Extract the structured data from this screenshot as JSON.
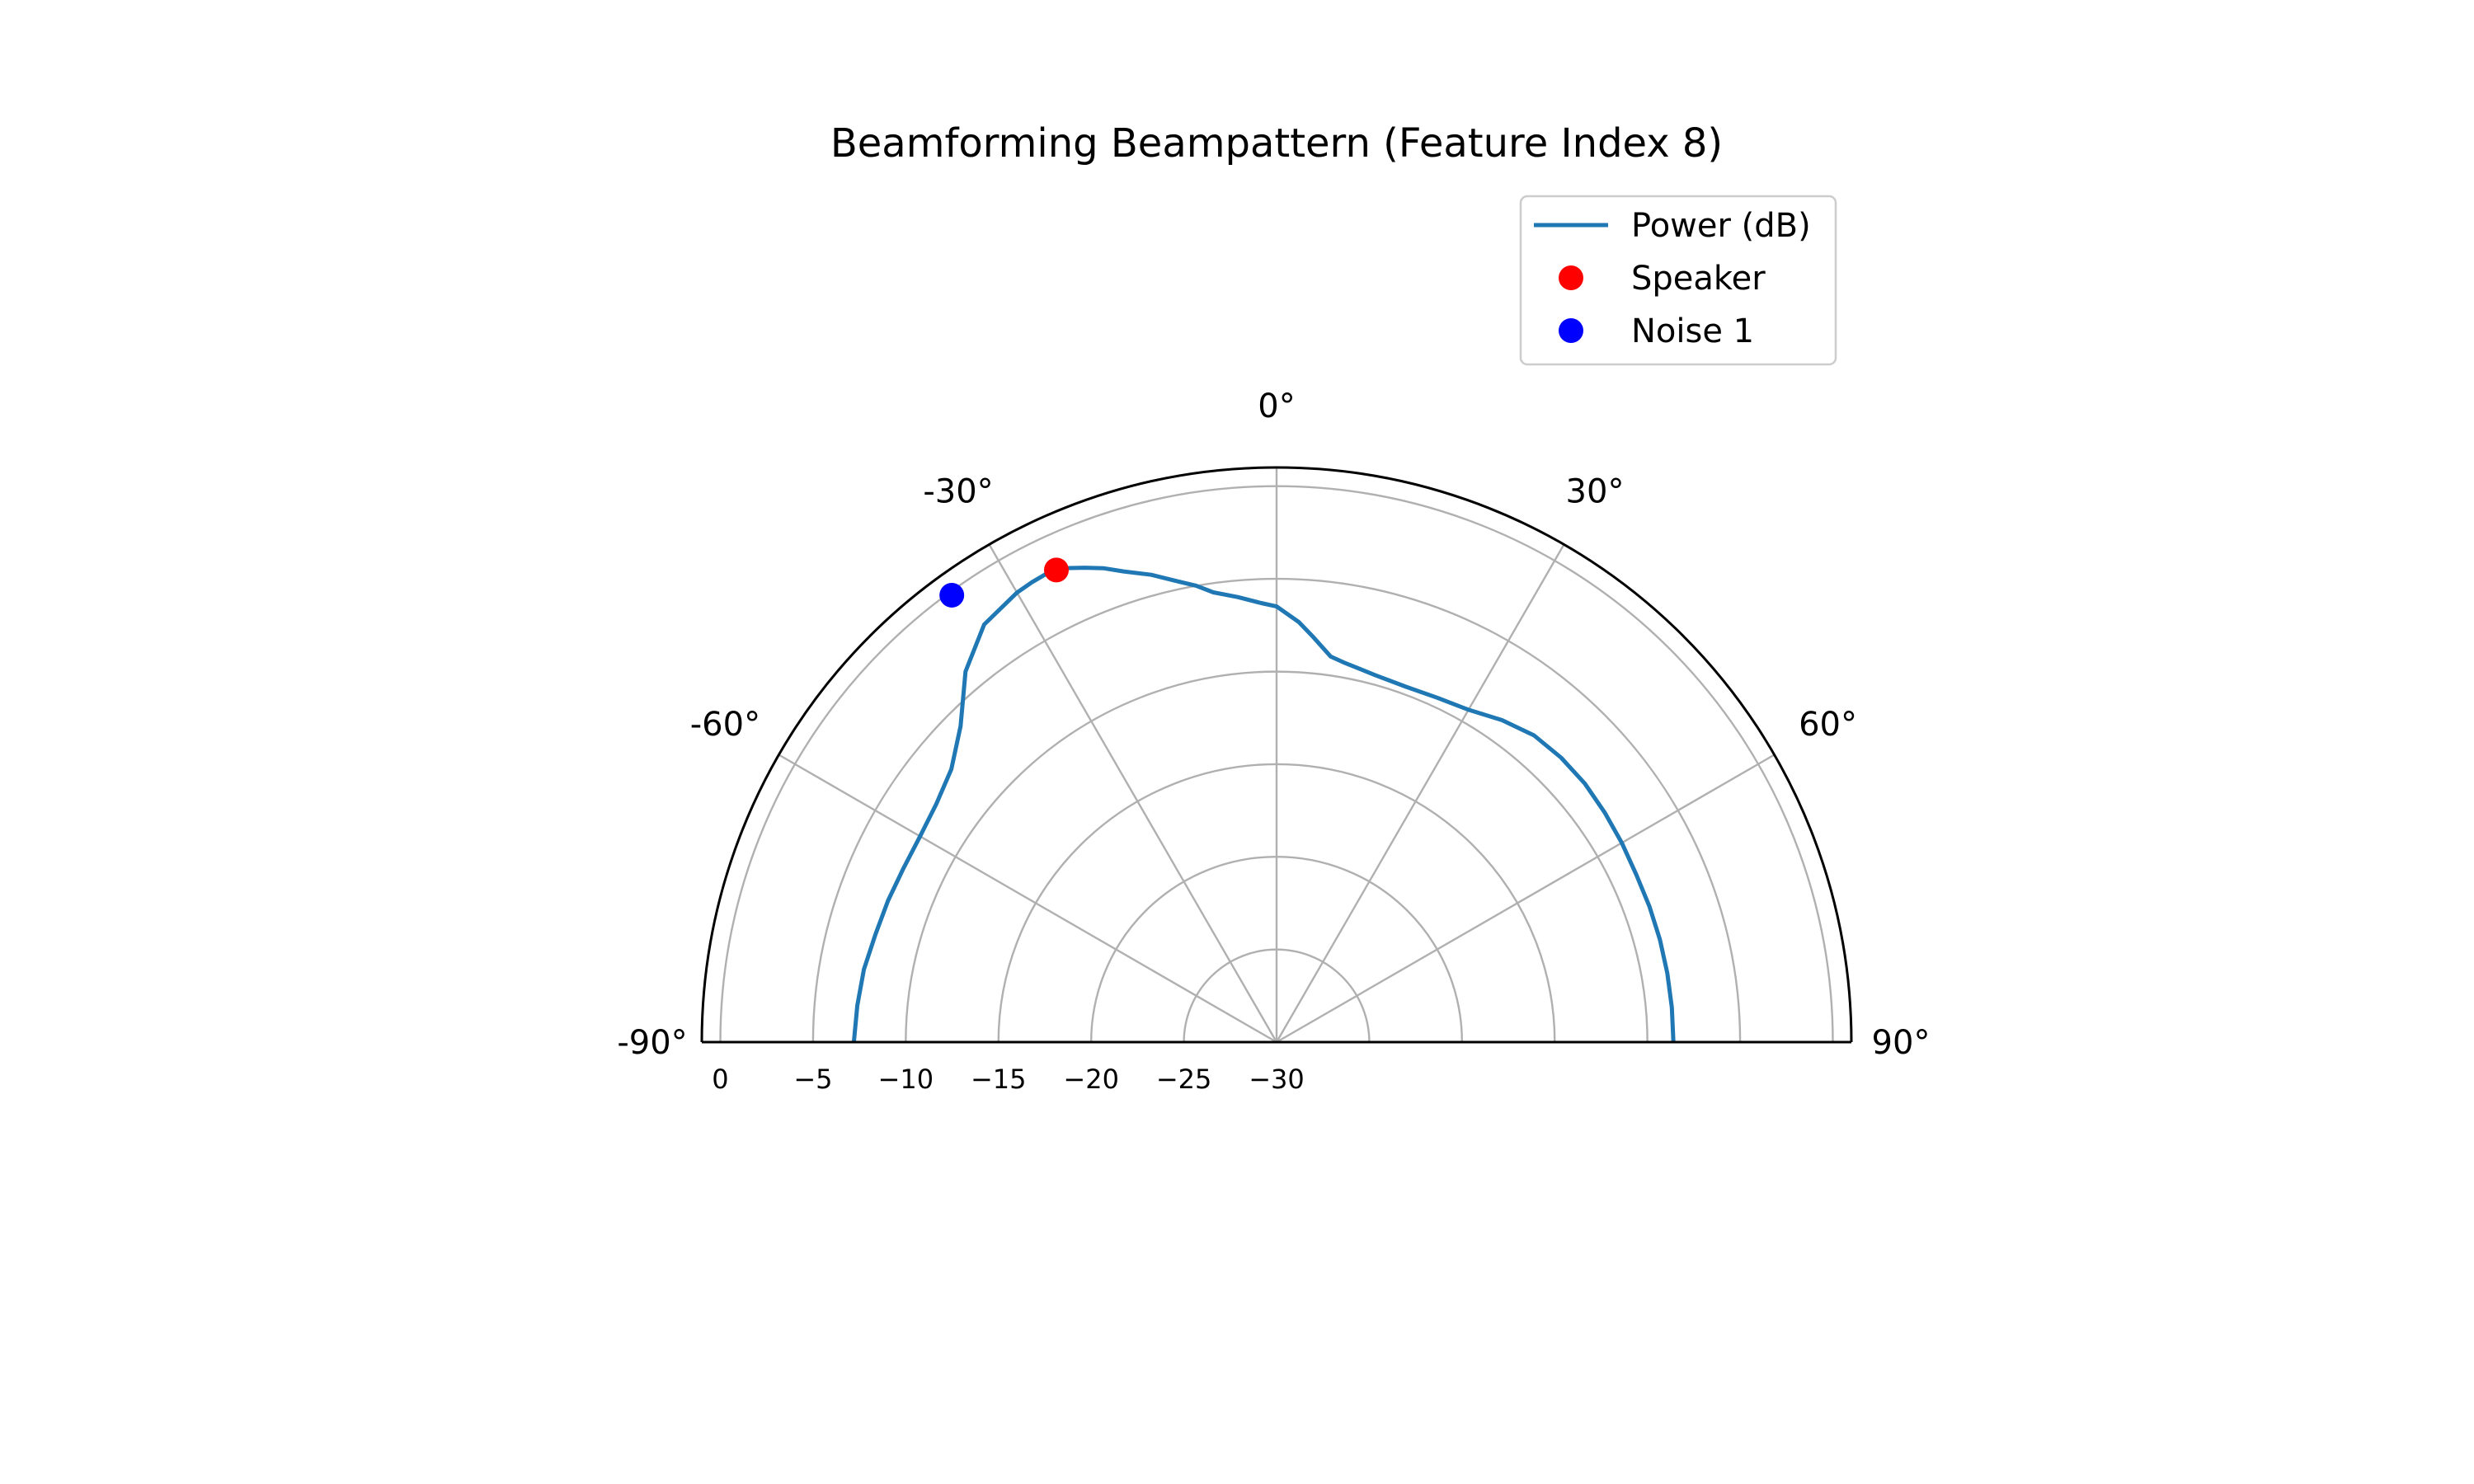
{
  "chart_data": {
    "type": "polar-line",
    "title": "Beamforming Beampattern (Feature Index 8)",
    "theta_range_deg": [
      -90,
      90
    ],
    "theta_ticks": [
      -90,
      -60,
      -30,
      0,
      30,
      60,
      90
    ],
    "theta_tick_labels": [
      "-90°",
      "-60°",
      "-30°",
      "0°",
      "30°",
      "60°",
      "90°"
    ],
    "r_range_db": [
      -30,
      1
    ],
    "r_ticks": [
      0,
      -5,
      -10,
      -15,
      -20,
      -25,
      -30
    ],
    "r_tick_labels": [
      "0",
      "−5",
      "−10",
      "−15",
      "−20",
      "−25",
      "−30"
    ],
    "grid": true,
    "legend_position": "top-right",
    "legend": [
      "Power (dB)",
      "Speaker",
      "Noise 1"
    ],
    "series": [
      {
        "name": "Power (dB)",
        "color": "#1f77b4",
        "theta_deg": [
          -90,
          -85,
          -80,
          -75,
          -70,
          -65,
          -60,
          -55,
          -50,
          -45,
          -40,
          -35,
          -30,
          -28,
          -25,
          -22,
          -20,
          -18,
          -15,
          -12,
          -10,
          -8,
          -5,
          -2,
          0,
          3,
          5,
          8,
          10,
          15,
          20,
          25,
          30,
          35,
          40,
          45,
          50,
          55,
          60,
          65,
          70,
          75,
          80,
          85,
          90
        ],
        "r_db": [
          -7.2,
          -7.3,
          -7.4,
          -7.6,
          -7.7,
          -7.8,
          -7.8,
          -7.6,
          -7.1,
          -5.9,
          -3.9,
          -2.5,
          -2.0,
          -1.9,
          -1.8,
          -2.4,
          -2.8,
          -3.3,
          -3.9,
          -4.6,
          -5.0,
          -5.5,
          -5.9,
          -6.3,
          -6.5,
          -7.3,
          -8.0,
          -9.0,
          -9.2,
          -9.5,
          -9.6,
          -9.5,
          -9.3,
          -8.8,
          -8.4,
          -8.3,
          -8.3,
          -8.4,
          -8.5,
          -8.6,
          -8.6,
          -8.6,
          -8.6,
          -8.6,
          -8.6
        ]
      },
      {
        "name": "Speaker",
        "color": "#ff0000",
        "theta_deg": [
          -25
        ],
        "r_db": [
          -1.9
        ]
      },
      {
        "name": "Noise 1",
        "color": "#0000ff",
        "theta_deg": [
          -36
        ],
        "r_db": [
          -0.2
        ]
      }
    ]
  }
}
